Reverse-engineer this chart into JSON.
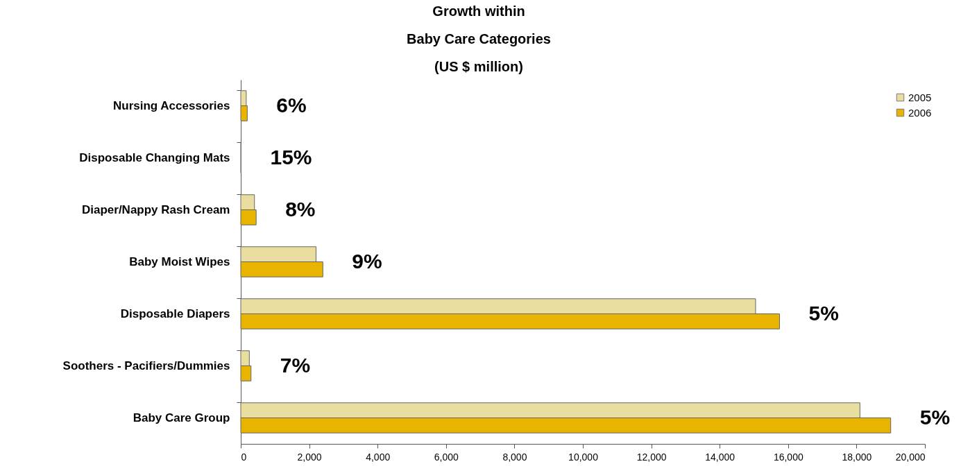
{
  "chart_data": {
    "type": "bar",
    "orientation": "horizontal",
    "title": "Growth within\nBaby Care Categories\n(US $ million)",
    "categories": [
      "Nursing Accessories",
      "Disposable Changing Mats",
      "Diaper/Nappy Rash Cream",
      "Baby Moist Wipes",
      "Disposable Diapers",
      "Soothers - Pacifiers/Dummies",
      "Baby Care Group"
    ],
    "series": [
      {
        "name": "2005",
        "color": "#e9dd9f",
        "values": [
          160,
          10,
          400,
          2200,
          15050,
          250,
          18100
        ]
      },
      {
        "name": "2006",
        "color": "#e8b400",
        "values": [
          190,
          10,
          450,
          2400,
          15750,
          300,
          19000
        ]
      }
    ],
    "xlim": [
      0,
      20000
    ],
    "xticks": [
      {
        "value": 0,
        "label": "0"
      },
      {
        "value": 2000,
        "label": "2,000"
      },
      {
        "value": 4000,
        "label": "4,000"
      },
      {
        "value": 6000,
        "label": "6,000"
      },
      {
        "value": 8000,
        "label": "8,000"
      },
      {
        "value": 10000,
        "label": "10,000"
      },
      {
        "value": 12000,
        "label": "12,000"
      },
      {
        "value": 14000,
        "label": "14,000"
      },
      {
        "value": 16000,
        "label": "16,000"
      },
      {
        "value": 18000,
        "label": "18,000"
      },
      {
        "value": 20000,
        "label": "20,000"
      }
    ],
    "annotations": [
      "6%",
      "15%",
      "8%",
      "9%",
      "5%",
      "7%",
      "5%"
    ],
    "grid": false,
    "legend": "top right"
  }
}
